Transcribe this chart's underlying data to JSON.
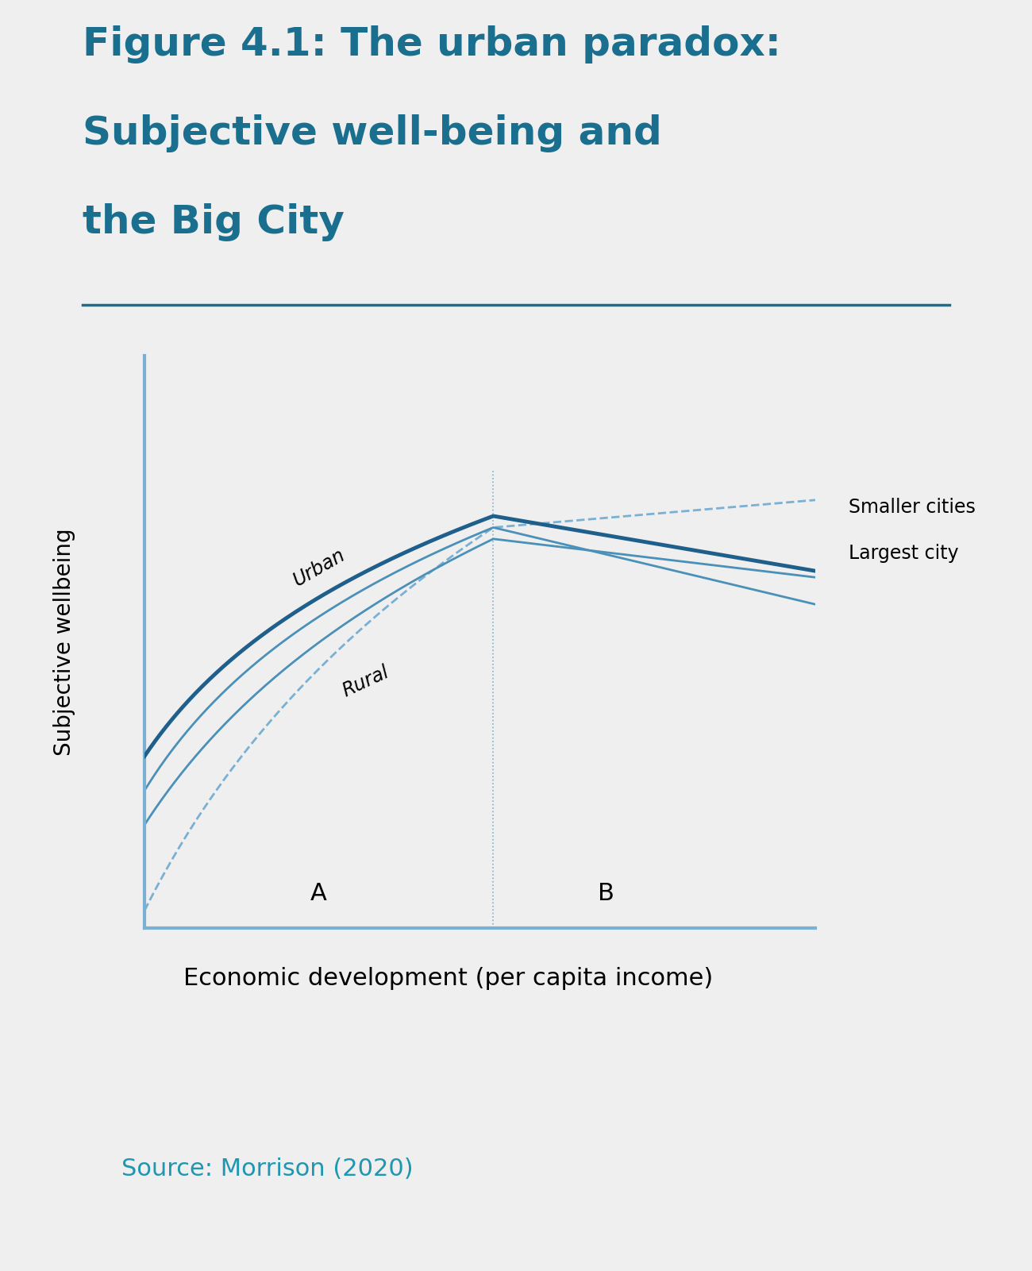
{
  "title_line1": "Figure 4.1: The urban paradox:",
  "title_line2": "Subjective well-being and",
  "title_line3": "the Big City",
  "title_color": "#1a6e8e",
  "title_fontsize": 36,
  "source_text": "Source: Morrison (2020)",
  "source_color": "#2196b0",
  "source_fontsize": 22,
  "ylabel": "Subjective wellbeing",
  "xlabel": "Economic development (per capita income)",
  "xlabel_fontsize": 22,
  "ylabel_fontsize": 20,
  "bg_color": "#efefef",
  "plot_bg_color": "#efefef",
  "axis_color": "#7ab0d4",
  "line_color_dark": "#1f5f8b",
  "line_color_mid": "#4a90b8",
  "line_color_dashed": "#7ab0d4",
  "separator_color": "#1a6e8e",
  "label_urban": "Urban",
  "label_rural": "Rural",
  "label_smaller": "Smaller cities",
  "label_largest": "Largest city",
  "label_A": "A",
  "label_B": "B",
  "vline_x": 0.52
}
